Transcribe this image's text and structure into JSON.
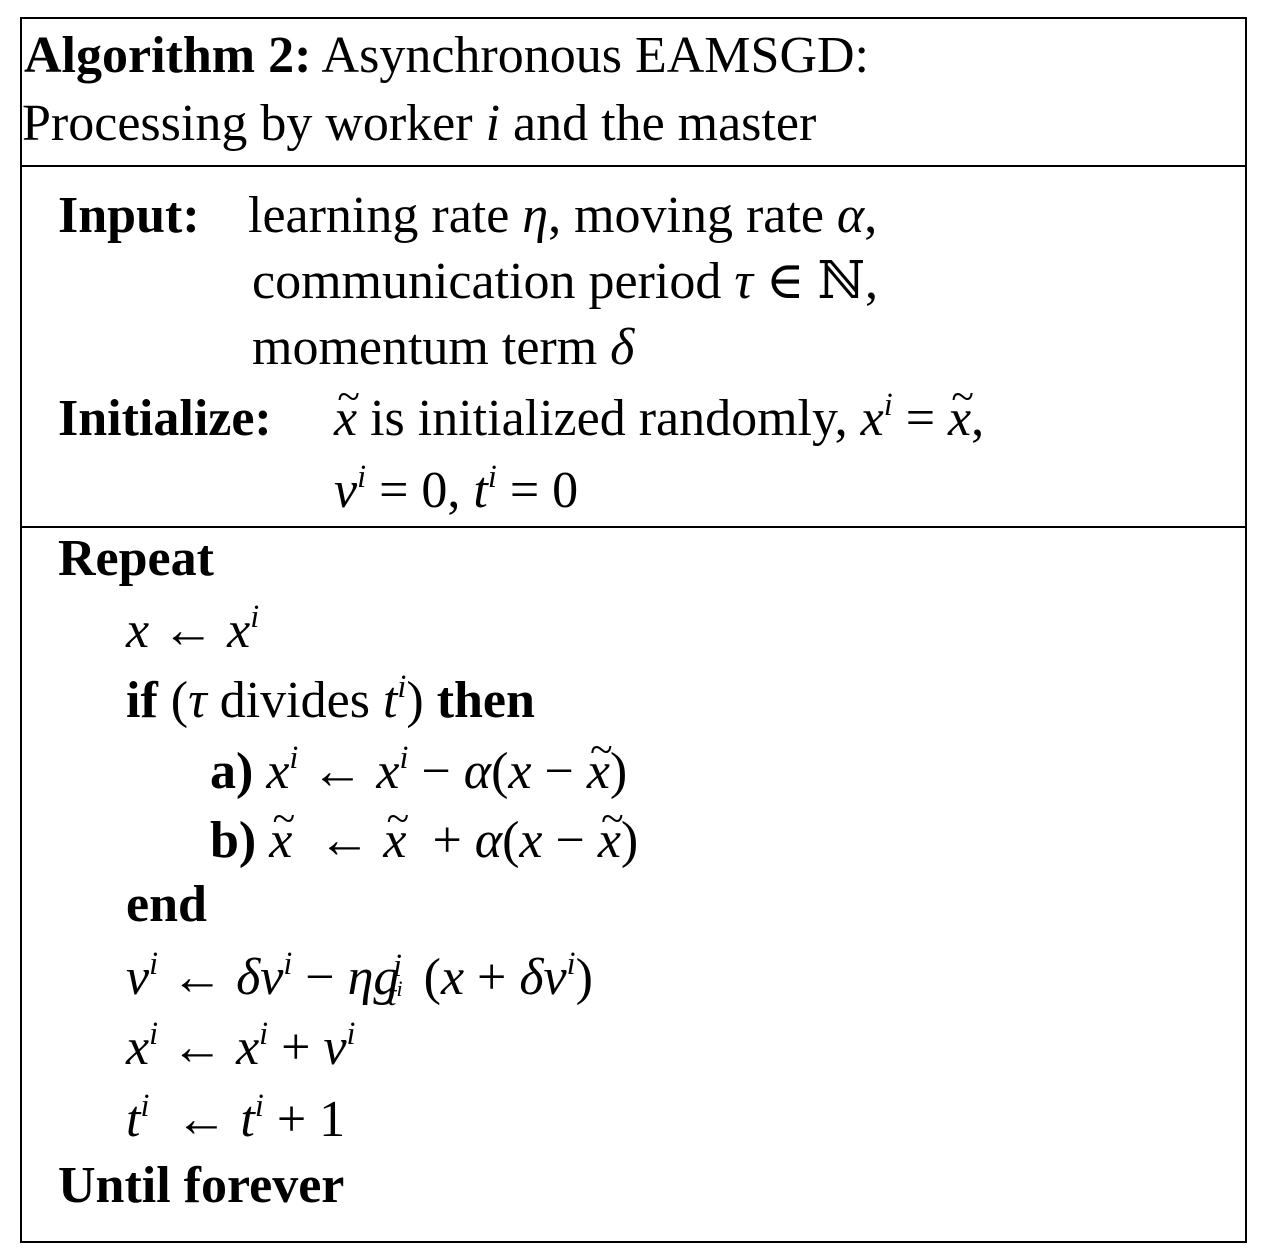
{
  "title": {
    "label": "Algorithm 2:",
    "line1": "Asynchronous EAMSGD:",
    "line2a": "Processing by worker",
    "line2var": "i",
    "line2b": "and the master"
  },
  "input": {
    "label": "Input:",
    "line1a": "learning rate",
    "eta": "η",
    "line1b": ", moving rate",
    "alpha": "α",
    "line1c": ",",
    "line2a": "communication period",
    "tau": "τ",
    "line2b": "∈ ℕ,",
    "line3a": "momentum term",
    "delta": "δ"
  },
  "initialize": {
    "label": "Initialize:",
    "line1a": "is initialized randomly,",
    "line2a": "= 0,",
    "line2b": "= 0"
  },
  "loop": {
    "repeat": "Repeat",
    "if_kw": "if",
    "divides": "divides",
    "then_kw": "then",
    "a_label": "a)",
    "b_label": "b)",
    "end_kw": "end",
    "until": "Until forever"
  }
}
